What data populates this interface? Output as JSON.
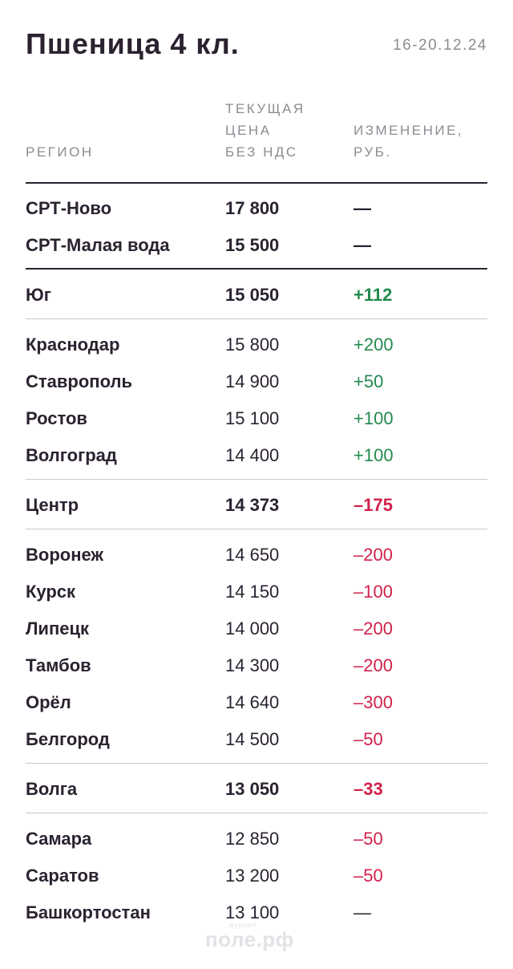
{
  "header": {
    "title": "Пшеница 4 кл.",
    "date": "16-20.12.24"
  },
  "columns": {
    "region": "РЕГИОН",
    "price": [
      "ТЕКУЩАЯ",
      "ЦЕНА",
      "БЕЗ НДС"
    ],
    "change": [
      "ИЗМЕНЕНИЕ,",
      "РУБ."
    ]
  },
  "rows": [
    {
      "region": "СРТ-Ново",
      "price": "17 800",
      "change": "—"
    },
    {
      "region": "СРТ-Малая вода",
      "price": "15 500",
      "change": "—"
    },
    {
      "region": "Юг",
      "price": "15 050",
      "change": "+112"
    },
    {
      "region": "Краснодар",
      "price": "15 800",
      "change": "+200"
    },
    {
      "region": "Ставрополь",
      "price": "14 900",
      "change": "+50"
    },
    {
      "region": "Ростов",
      "price": "15 100",
      "change": "+100"
    },
    {
      "region": "Волгоград",
      "price": "14 400",
      "change": "+100"
    },
    {
      "region": "Центр",
      "price": "14 373",
      "change": "–175"
    },
    {
      "region": "Воронеж",
      "price": "14 650",
      "change": "–200"
    },
    {
      "region": "Курск",
      "price": "14 150",
      "change": "–100"
    },
    {
      "region": "Липецк",
      "price": "14 000",
      "change": "–200"
    },
    {
      "region": "Тамбов",
      "price": "14 300",
      "change": "–200"
    },
    {
      "region": "Орёл",
      "price": "14 640",
      "change": "–300"
    },
    {
      "region": "Белгород",
      "price": "14 500",
      "change": "–50"
    },
    {
      "region": "Волга",
      "price": "13 050",
      "change": "–33"
    },
    {
      "region": "Самара",
      "price": "12 850",
      "change": "–50"
    },
    {
      "region": "Саратов",
      "price": "13 200",
      "change": "–50"
    },
    {
      "region": "Башкортостан",
      "price": "13 100",
      "change": "—"
    }
  ],
  "watermark": {
    "small": "журнал",
    "big": "поле.рф"
  },
  "colors": {
    "positive": "#238a4f",
    "negative": "#d2204a",
    "text": "#2b2230",
    "muted": "#8e8a92"
  }
}
